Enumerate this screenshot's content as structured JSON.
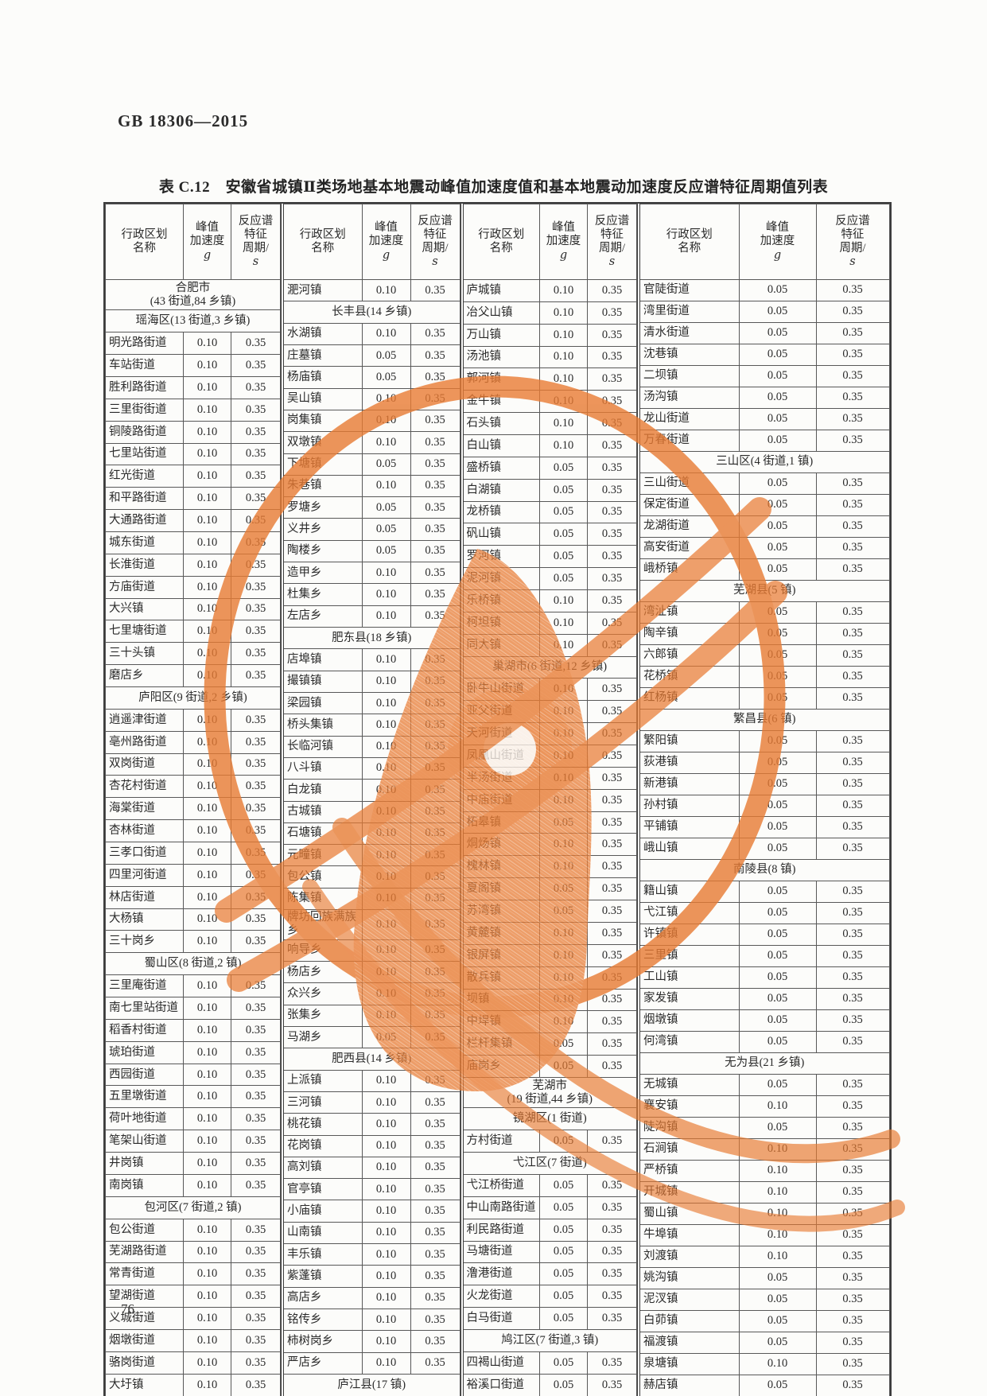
{
  "doc_header": "GB 18306—2015",
  "table_title": "表 C.12　安徽省城镇Ⅱ类场地基本地震动峰值加速度值和基本地震动加速度反应谱特征周期值列表",
  "page_number": "76",
  "watermark_color": "#e87b33",
  "column_headers": {
    "name": "行政区划\n名称",
    "accel": "峰值\n加速度",
    "accel_unit": "g",
    "period": "反应谱\n特征\n周期/",
    "period_unit": "s"
  },
  "groups": [
    [
      [
        "合肥市",
        "(43 街道,84 乡镇)"
      ],
      [
        "瑶海区(13 街道,3 乡镇)"
      ],
      [
        "明光路街道",
        "0.10",
        "0.35"
      ],
      [
        "车站街道",
        "0.10",
        "0.35"
      ],
      [
        "胜利路街道",
        "0.10",
        "0.35"
      ],
      [
        "三里街街道",
        "0.10",
        "0.35"
      ],
      [
        "铜陵路街道",
        "0.10",
        "0.35"
      ],
      [
        "七里站街道",
        "0.10",
        "0.35"
      ],
      [
        "红光街道",
        "0.10",
        "0.35"
      ],
      [
        "和平路街道",
        "0.10",
        "0.35"
      ],
      [
        "大通路街道",
        "0.10",
        "0.35"
      ],
      [
        "城东街道",
        "0.10",
        "0.35"
      ],
      [
        "长淮街道",
        "0.10",
        "0.35"
      ],
      [
        "方庙街道",
        "0.10",
        "0.35"
      ],
      [
        "大兴镇",
        "0.10",
        "0.35"
      ],
      [
        "七里塘街道",
        "0.10",
        "0.35"
      ],
      [
        "三十头镇",
        "0.10",
        "0.35"
      ],
      [
        "磨店乡",
        "0.10",
        "0.35"
      ],
      [
        "庐阳区(9 街道,2 乡镇)"
      ],
      [
        "逍遥津街道",
        "0.10",
        "0.35"
      ],
      [
        "亳州路街道",
        "0.10",
        "0.35"
      ],
      [
        "双岗街道",
        "0.10",
        "0.35"
      ],
      [
        "杏花村街道",
        "0.10",
        "0.35"
      ],
      [
        "海棠街道",
        "0.10",
        "0.35"
      ],
      [
        "杏林街道",
        "0.10",
        "0.35"
      ],
      [
        "三孝口街道",
        "0.10",
        "0.35"
      ],
      [
        "四里河街道",
        "0.10",
        "0.35"
      ],
      [
        "林店街道",
        "0.10",
        "0.35"
      ],
      [
        "大杨镇",
        "0.10",
        "0.35"
      ],
      [
        "三十岗乡",
        "0.10",
        "0.35"
      ],
      [
        "蜀山区(8 街道,2 镇)"
      ],
      [
        "三里庵街道",
        "0.10",
        "0.35"
      ],
      [
        "南七里站街道",
        "0.10",
        "0.35"
      ],
      [
        "稻香村街道",
        "0.10",
        "0.35"
      ],
      [
        "琥珀街道",
        "0.10",
        "0.35"
      ],
      [
        "西园街道",
        "0.10",
        "0.35"
      ],
      [
        "五里墩街道",
        "0.10",
        "0.35"
      ],
      [
        "荷叶地街道",
        "0.10",
        "0.35"
      ],
      [
        "笔架山街道",
        "0.10",
        "0.35"
      ],
      [
        "井岗镇",
        "0.10",
        "0.35"
      ],
      [
        "南岗镇",
        "0.10",
        "0.35"
      ],
      [
        "包河区(7 街道,2 镇)"
      ],
      [
        "包公街道",
        "0.10",
        "0.35"
      ],
      [
        "芜湖路街道",
        "0.10",
        "0.35"
      ],
      [
        "常青街道",
        "0.10",
        "0.35"
      ],
      [
        "望湖街道",
        "0.10",
        "0.35"
      ],
      [
        "义城街道",
        "0.10",
        "0.35"
      ],
      [
        "烟墩街道",
        "0.10",
        "0.35"
      ],
      [
        "骆岗街道",
        "0.10",
        "0.35"
      ],
      [
        "大圩镇",
        "0.10",
        "0.35"
      ]
    ],
    [
      [
        "淝河镇",
        "0.10",
        "0.35"
      ],
      [
        "长丰县(14 乡镇)"
      ],
      [
        "水湖镇",
        "0.10",
        "0.35"
      ],
      [
        "庄墓镇",
        "0.05",
        "0.35"
      ],
      [
        "杨庙镇",
        "0.05",
        "0.35"
      ],
      [
        "吴山镇",
        "0.10",
        "0.35"
      ],
      [
        "岗集镇",
        "0.10",
        "0.35"
      ],
      [
        "双墩镇",
        "0.10",
        "0.35"
      ],
      [
        "下塘镇",
        "0.05",
        "0.35"
      ],
      [
        "朱巷镇",
        "0.10",
        "0.35"
      ],
      [
        "罗塘乡",
        "0.05",
        "0.35"
      ],
      [
        "义井乡",
        "0.05",
        "0.35"
      ],
      [
        "陶楼乡",
        "0.05",
        "0.35"
      ],
      [
        "造甲乡",
        "0.10",
        "0.35"
      ],
      [
        "杜集乡",
        "0.10",
        "0.35"
      ],
      [
        "左店乡",
        "0.10",
        "0.35"
      ],
      [
        "肥东县(18 乡镇)"
      ],
      [
        "店埠镇",
        "0.10",
        "0.35"
      ],
      [
        "撮镇镇",
        "0.10",
        "0.35"
      ],
      [
        "梁园镇",
        "0.10",
        "0.35"
      ],
      [
        "桥头集镇",
        "0.10",
        "0.35"
      ],
      [
        "长临河镇",
        "0.10",
        "0.35"
      ],
      [
        "八斗镇",
        "0.10",
        "0.35"
      ],
      [
        "白龙镇",
        "0.10",
        "0.35"
      ],
      [
        "古城镇",
        "0.10",
        "0.35"
      ],
      [
        "石塘镇",
        "0.10",
        "0.35"
      ],
      [
        "元疃镇",
        "0.10",
        "0.35"
      ],
      [
        "包公镇",
        "0.10",
        "0.35"
      ],
      [
        "陈集镇",
        "0.10",
        "0.35"
      ],
      [
        "牌坊回族满族乡",
        "0.10",
        "0.35"
      ],
      [
        "响导乡",
        "0.10",
        "0.35"
      ],
      [
        "杨店乡",
        "0.10",
        "0.35"
      ],
      [
        "众兴乡",
        "0.10",
        "0.35"
      ],
      [
        "张集乡",
        "0.10",
        "0.35"
      ],
      [
        "马湖乡",
        "0.05",
        "0.35"
      ],
      [
        "肥西县(14 乡镇)"
      ],
      [
        "上派镇",
        "0.10",
        "0.35"
      ],
      [
        "三河镇",
        "0.10",
        "0.35"
      ],
      [
        "桃花镇",
        "0.10",
        "0.35"
      ],
      [
        "花岗镇",
        "0.10",
        "0.35"
      ],
      [
        "高刘镇",
        "0.10",
        "0.35"
      ],
      [
        "官亭镇",
        "0.10",
        "0.35"
      ],
      [
        "小庙镇",
        "0.10",
        "0.35"
      ],
      [
        "山南镇",
        "0.10",
        "0.35"
      ],
      [
        "丰乐镇",
        "0.10",
        "0.35"
      ],
      [
        "紫蓬镇",
        "0.10",
        "0.35"
      ],
      [
        "高店乡",
        "0.10",
        "0.35"
      ],
      [
        "铭传乡",
        "0.10",
        "0.35"
      ],
      [
        "柿树岗乡",
        "0.10",
        "0.35"
      ],
      [
        "严店乡",
        "0.10",
        "0.35"
      ],
      [
        "庐江县(17 镇)"
      ]
    ],
    [
      [
        "庐城镇",
        "0.10",
        "0.35"
      ],
      [
        "冶父山镇",
        "0.10",
        "0.35"
      ],
      [
        "万山镇",
        "0.10",
        "0.35"
      ],
      [
        "汤池镇",
        "0.10",
        "0.35"
      ],
      [
        "郭河镇",
        "0.10",
        "0.35"
      ],
      [
        "金牛镇",
        "0.10",
        "0.35"
      ],
      [
        "石头镇",
        "0.10",
        "0.35"
      ],
      [
        "白山镇",
        "0.10",
        "0.35"
      ],
      [
        "盛桥镇",
        "0.05",
        "0.35"
      ],
      [
        "白湖镇",
        "0.05",
        "0.35"
      ],
      [
        "龙桥镇",
        "0.05",
        "0.35"
      ],
      [
        "矾山镇",
        "0.05",
        "0.35"
      ],
      [
        "罗河镇",
        "0.05",
        "0.35"
      ],
      [
        "泥河镇",
        "0.05",
        "0.35"
      ],
      [
        "乐桥镇",
        "0.10",
        "0.35"
      ],
      [
        "柯坦镇",
        "0.10",
        "0.35"
      ],
      [
        "同大镇",
        "0.10",
        "0.35"
      ],
      [
        "巢湖市(6 街道,12 乡镇)"
      ],
      [
        "卧牛山街道",
        "0.10",
        "0.35"
      ],
      [
        "亚父街道",
        "0.10",
        "0.35"
      ],
      [
        "天河街道",
        "0.10",
        "0.35"
      ],
      [
        "凤凰山街道",
        "0.10",
        "0.35"
      ],
      [
        "半汤街道",
        "0.10",
        "0.35"
      ],
      [
        "中庙街道",
        "0.10",
        "0.35"
      ],
      [
        "柘皋镇",
        "0.05",
        "0.35"
      ],
      [
        "烔炀镇",
        "0.10",
        "0.35"
      ],
      [
        "槐林镇",
        "0.10",
        "0.35"
      ],
      [
        "夏阁镇",
        "0.05",
        "0.35"
      ],
      [
        "苏湾镇",
        "0.05",
        "0.35"
      ],
      [
        "黄麓镇",
        "0.10",
        "0.35"
      ],
      [
        "银屏镇",
        "0.10",
        "0.35"
      ],
      [
        "散兵镇",
        "0.10",
        "0.35"
      ],
      [
        "坝镇",
        "0.10",
        "0.35"
      ],
      [
        "中垾镇",
        "0.10",
        "0.35"
      ],
      [
        "栏杆集镇",
        "0.05",
        "0.35"
      ],
      [
        "庙岗乡",
        "0.05",
        "0.35"
      ],
      [
        "芜湖市",
        "(19 街道,44 乡镇)"
      ],
      [
        "镜湖区(1 街道)"
      ],
      [
        "方村街道",
        "0.05",
        "0.35"
      ],
      [
        "弋江区(7 街道)"
      ],
      [
        "弋江桥街道",
        "0.05",
        "0.35"
      ],
      [
        "中山南路街道",
        "0.05",
        "0.35"
      ],
      [
        "利民路街道",
        "0.05",
        "0.35"
      ],
      [
        "马塘街道",
        "0.05",
        "0.35"
      ],
      [
        "澛港街道",
        "0.05",
        "0.35"
      ],
      [
        "火龙街道",
        "0.05",
        "0.35"
      ],
      [
        "白马街道",
        "0.05",
        "0.35"
      ],
      [
        "鸠江区(7 街道,3 镇)"
      ],
      [
        "四褐山街道",
        "0.05",
        "0.35"
      ],
      [
        "裕溪口街道",
        "0.05",
        "0.35"
      ]
    ],
    [
      [
        "官陡街道",
        "0.05",
        "0.35"
      ],
      [
        "湾里街道",
        "0.05",
        "0.35"
      ],
      [
        "清水街道",
        "0.05",
        "0.35"
      ],
      [
        "沈巷镇",
        "0.05",
        "0.35"
      ],
      [
        "二坝镇",
        "0.05",
        "0.35"
      ],
      [
        "汤沟镇",
        "0.05",
        "0.35"
      ],
      [
        "龙山街道",
        "0.05",
        "0.35"
      ],
      [
        "万春街道",
        "0.05",
        "0.35"
      ],
      [
        "三山区(4 街道,1 镇)"
      ],
      [
        "三山街道",
        "0.05",
        "0.35"
      ],
      [
        "保定街道",
        "0.05",
        "0.35"
      ],
      [
        "龙湖街道",
        "0.05",
        "0.35"
      ],
      [
        "高安街道",
        "0.05",
        "0.35"
      ],
      [
        "峨桥镇",
        "0.05",
        "0.35"
      ],
      [
        "芜湖县(5 镇)"
      ],
      [
        "湾沚镇",
        "0.05",
        "0.35"
      ],
      [
        "陶辛镇",
        "0.05",
        "0.35"
      ],
      [
        "六郎镇",
        "0.05",
        "0.35"
      ],
      [
        "花桥镇",
        "0.05",
        "0.35"
      ],
      [
        "红杨镇",
        "0.05",
        "0.35"
      ],
      [
        "繁昌县(6 镇)"
      ],
      [
        "繁阳镇",
        "0.05",
        "0.35"
      ],
      [
        "荻港镇",
        "0.05",
        "0.35"
      ],
      [
        "新港镇",
        "0.05",
        "0.35"
      ],
      [
        "孙村镇",
        "0.05",
        "0.35"
      ],
      [
        "平铺镇",
        "0.05",
        "0.35"
      ],
      [
        "峨山镇",
        "0.05",
        "0.35"
      ],
      [
        "南陵县(8 镇)"
      ],
      [
        "籍山镇",
        "0.05",
        "0.35"
      ],
      [
        "弋江镇",
        "0.05",
        "0.35"
      ],
      [
        "许镇镇",
        "0.05",
        "0.35"
      ],
      [
        "三里镇",
        "0.05",
        "0.35"
      ],
      [
        "工山镇",
        "0.05",
        "0.35"
      ],
      [
        "家发镇",
        "0.05",
        "0.35"
      ],
      [
        "烟墩镇",
        "0.05",
        "0.35"
      ],
      [
        "何湾镇",
        "0.05",
        "0.35"
      ],
      [
        "无为县(21 乡镇)"
      ],
      [
        "无城镇",
        "0.05",
        "0.35"
      ],
      [
        "襄安镇",
        "0.10",
        "0.35"
      ],
      [
        "陡沟镇",
        "0.05",
        "0.35"
      ],
      [
        "石涧镇",
        "0.10",
        "0.35"
      ],
      [
        "严桥镇",
        "0.10",
        "0.35"
      ],
      [
        "开城镇",
        "0.10",
        "0.35"
      ],
      [
        "蜀山镇",
        "0.10",
        "0.35"
      ],
      [
        "牛埠镇",
        "0.10",
        "0.35"
      ],
      [
        "刘渡镇",
        "0.10",
        "0.35"
      ],
      [
        "姚沟镇",
        "0.05",
        "0.35"
      ],
      [
        "泥汊镇",
        "0.05",
        "0.35"
      ],
      [
        "白茆镇",
        "0.05",
        "0.35"
      ],
      [
        "福渡镇",
        "0.05",
        "0.35"
      ],
      [
        "泉塘镇",
        "0.10",
        "0.35"
      ],
      [
        "赫店镇",
        "0.05",
        "0.35"
      ]
    ]
  ]
}
